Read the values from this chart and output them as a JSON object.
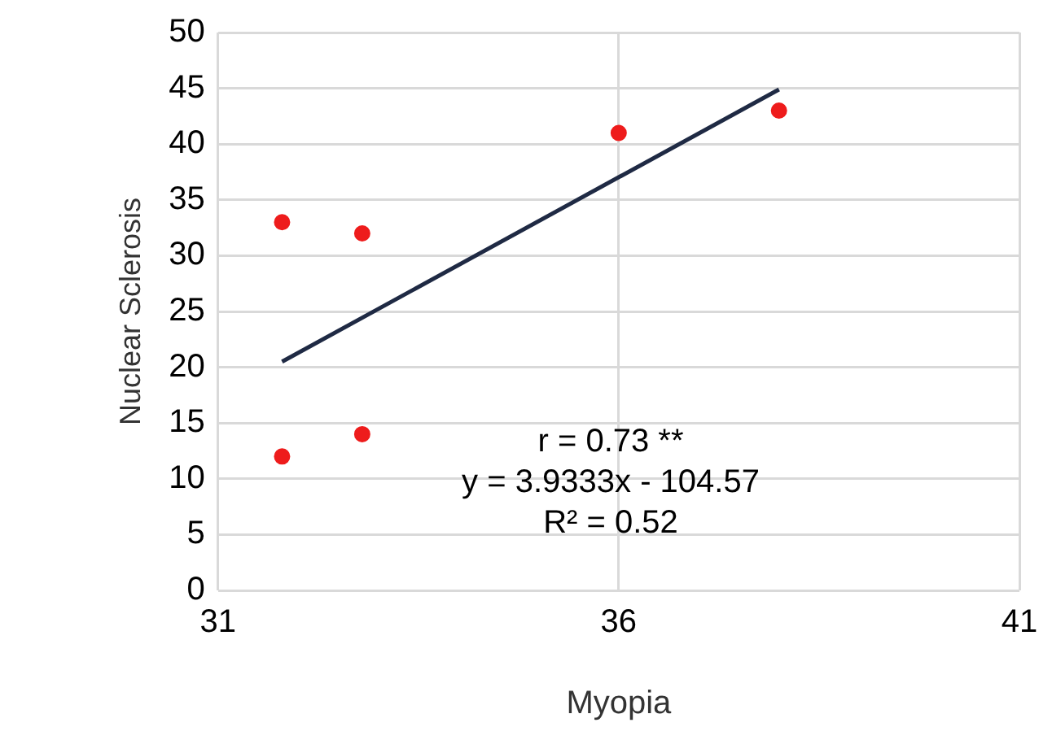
{
  "chart_data": {
    "type": "scatter",
    "xlabel": "Myopia",
    "ylabel": "Nuclear Sclerosis",
    "series": [
      {
        "color": "#ee1c1c",
        "x": [
          31.8,
          31.8,
          32.8,
          32.8,
          36,
          38
        ],
        "values": [
          33,
          12,
          32,
          14,
          41,
          43
        ]
      },
      {
        "type": "line",
        "marker": "none",
        "color": "#1f2a44",
        "x": [
          31.8,
          38
        ],
        "values": [
          20.5,
          44.9
        ]
      }
    ],
    "xlim": [
      31,
      41
    ],
    "xticks": [
      31,
      36,
      41
    ],
    "ylim": [
      0,
      50
    ],
    "yticks": [
      0,
      5,
      10,
      15,
      20,
      25,
      30,
      35,
      40,
      45,
      50
    ],
    "grid": true,
    "legend": false,
    "marker": "circle",
    "annotations": [
      "r = 0.73 **",
      "y = 3.9333x - 104.57",
      "R² = 0.52"
    ]
  }
}
